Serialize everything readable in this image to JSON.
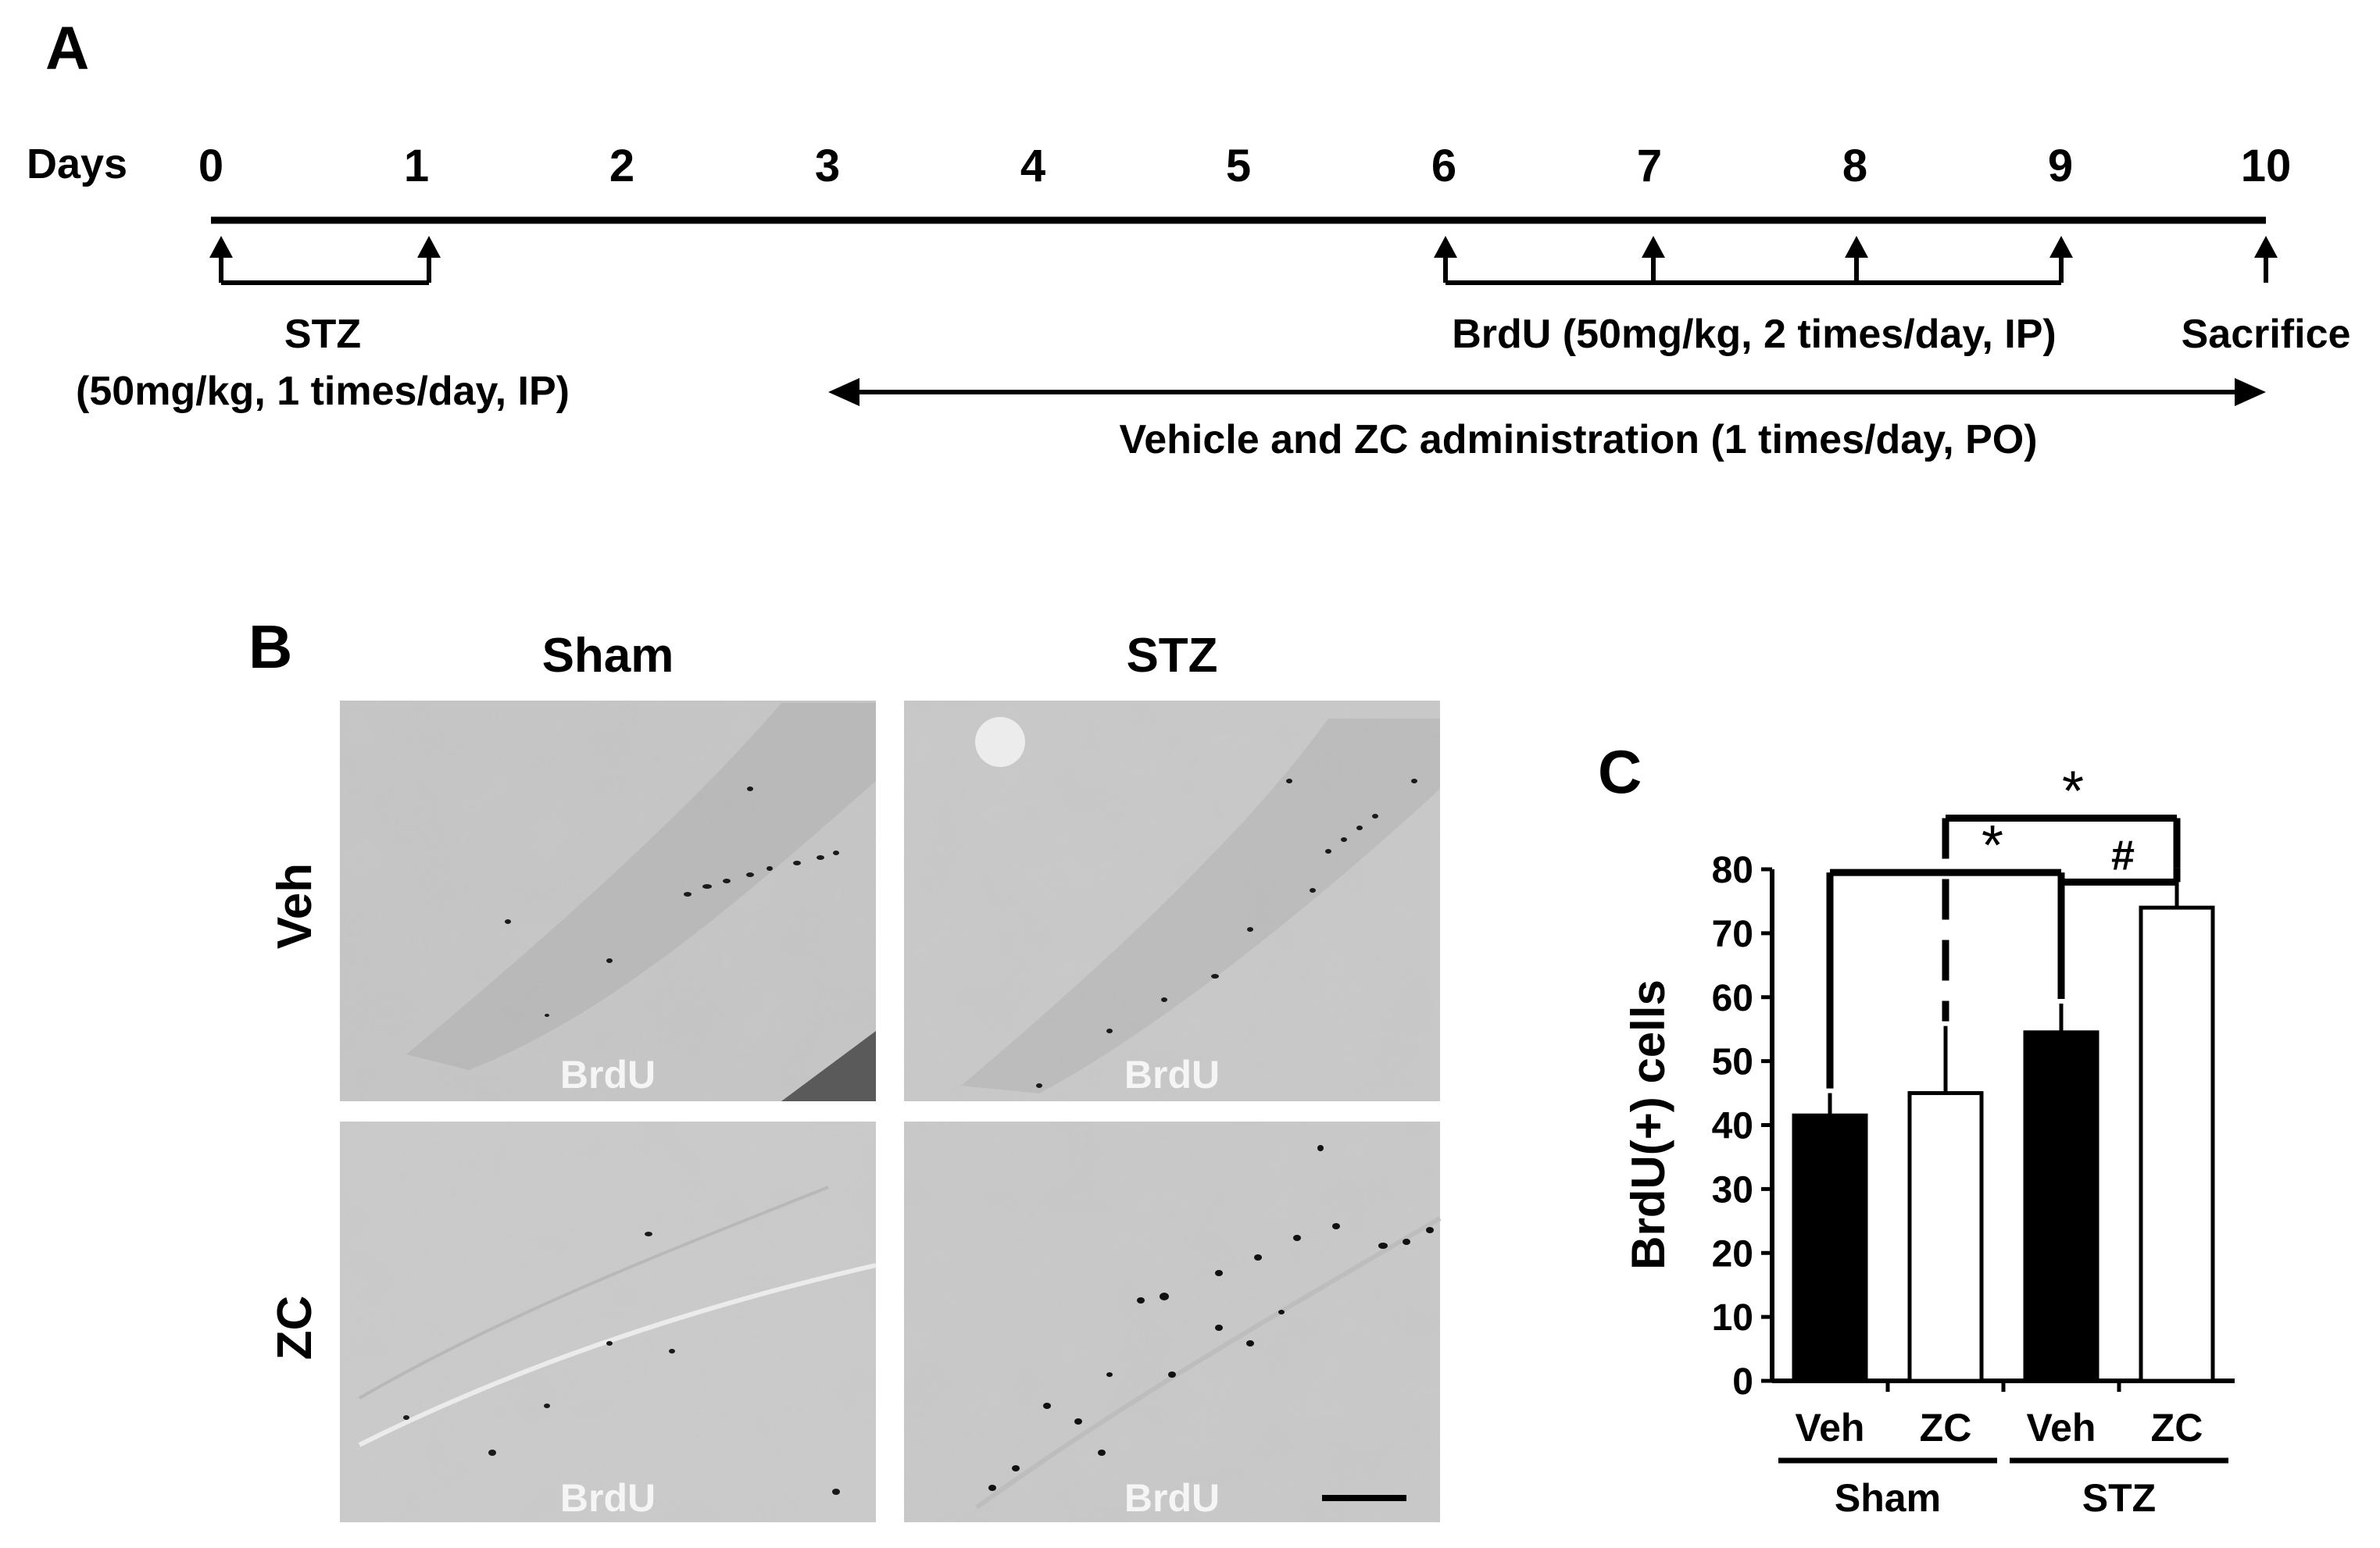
{
  "panel_a": {
    "label": "A",
    "days_label": "Days",
    "days": [
      "0",
      "1",
      "2",
      "3",
      "4",
      "5",
      "6",
      "7",
      "8",
      "9",
      "10"
    ],
    "stz_label": "STZ",
    "stz_dose": "(50mg/kg, 1 times/day, IP)",
    "brdu_label": "BrdU (50mg/kg, 2 times/day, IP)",
    "sacrifice_label": "Sacrifice",
    "vehicle_label": "Vehicle and ZC administration (1 times/day, PO)"
  },
  "panel_b": {
    "label": "B",
    "col_labels": [
      "Sham",
      "STZ"
    ],
    "row_labels": [
      "Veh",
      "ZC"
    ],
    "stain_label": "BrdU"
  },
  "panel_c": {
    "label": "C",
    "chart_data": {
      "type": "bar",
      "ylabel": "BrdU(+) cells",
      "ylim": [
        0,
        80
      ],
      "yticks": [
        "0",
        "10",
        "20",
        "30",
        "40",
        "50",
        "60",
        "70",
        "80"
      ],
      "categories": [
        "Veh",
        "ZC",
        "Veh",
        "ZC"
      ],
      "groups": [
        "Sham",
        "STZ"
      ],
      "values": [
        41.5,
        45,
        54.5,
        74
      ],
      "errors": [
        3.5,
        10.5,
        4.5,
        5.5
      ],
      "bar_colors": [
        "#000000",
        "#ffffff",
        "#000000",
        "#ffffff"
      ],
      "annotations": [
        "*",
        "*",
        "#"
      ]
    }
  }
}
